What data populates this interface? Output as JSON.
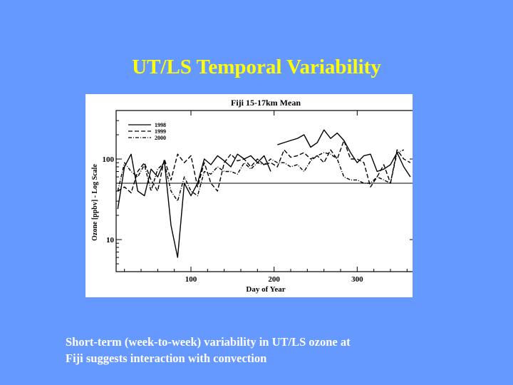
{
  "slide": {
    "title": "UT/LS Temporal Variability",
    "caption_lines": [
      "Short-term (week-to-week) variability in UT/LS ozone at",
      "Fiji suggests interaction with convection"
    ],
    "background_color": "#6699FF",
    "title_color": "#FFFF00",
    "caption_color": "#FFFFFF"
  },
  "chart_data": {
    "type": "line",
    "title": "Fiji 15-17km Mean",
    "xlabel": "Day of Year",
    "ylabel": "Ozone [ppbv] - Log Scale",
    "xlim": [
      10,
      370
    ],
    "ylim": [
      4,
      400
    ],
    "yscale": "log",
    "xticks": [
      100,
      200,
      300
    ],
    "yticks": [
      10,
      100
    ],
    "reference_line_y": 50,
    "grid": false,
    "legend_position": "top-left",
    "series": [
      {
        "name": "1998",
        "line_style": "solid",
        "segments": [
          [
            [
              12,
              24
            ],
            [
              20,
              80
            ],
            [
              28,
              115
            ],
            [
              36,
              40
            ],
            [
              44,
              35
            ],
            [
              52,
              75
            ],
            [
              60,
              60
            ],
            [
              68,
              95
            ],
            [
              76,
              15
            ],
            [
              84,
              6
            ],
            [
              92,
              50
            ],
            [
              100,
              35
            ],
            [
              108,
              50
            ],
            [
              116,
              100
            ],
            [
              124,
              85
            ],
            [
              132,
              110
            ],
            [
              140,
              95
            ],
            [
              148,
              80
            ],
            [
              156,
              115
            ],
            [
              164,
              100
            ],
            [
              172,
              110
            ],
            [
              180,
              90
            ],
            [
              188,
              110
            ],
            [
              196,
              70
            ]
          ],
          [
            [
              204,
              150
            ],
            [
              212,
              160
            ],
            [
              220,
              170
            ],
            [
              228,
              180
            ],
            [
              236,
              200
            ],
            [
              244,
              140
            ],
            [
              252,
              160
            ],
            [
              260,
              230
            ],
            [
              268,
              180
            ],
            [
              276,
              210
            ],
            [
              284,
              170
            ],
            [
              292,
              120
            ],
            [
              300,
              90
            ],
            [
              308,
              110
            ],
            [
              316,
              115
            ],
            [
              324,
              70
            ],
            [
              332,
              75
            ],
            [
              340,
              85
            ],
            [
              348,
              120
            ],
            [
              356,
              80
            ],
            [
              364,
              60
            ]
          ]
        ]
      },
      {
        "name": "1999",
        "line_style": "dashed",
        "segments": [
          [
            [
              12,
              40
            ],
            [
              20,
              45
            ],
            [
              28,
              38
            ],
            [
              36,
              70
            ],
            [
              44,
              90
            ],
            [
              52,
              55
            ],
            [
              60,
              40
            ],
            [
              68,
              100
            ],
            [
              76,
              55
            ],
            [
              84,
              115
            ],
            [
              92,
              90
            ],
            [
              100,
              110
            ],
            [
              108,
              45
            ],
            [
              116,
              90
            ],
            [
              124,
              50
            ],
            [
              132,
              40
            ],
            [
              140,
              90
            ],
            [
              148,
              115
            ],
            [
              156,
              95
            ],
            [
              164,
              100
            ],
            [
              172,
              80
            ],
            [
              180,
              100
            ],
            [
              188,
              85
            ],
            [
              196,
              90
            ],
            [
              204,
              80
            ],
            [
              212,
              130
            ],
            [
              220,
              105
            ],
            [
              228,
              110
            ],
            [
              236,
              120
            ],
            [
              244,
              100
            ],
            [
              252,
              110
            ],
            [
              260,
              90
            ],
            [
              268,
              130
            ],
            [
              276,
              100
            ],
            [
              284,
              170
            ],
            [
              292,
              100
            ],
            [
              300,
              100
            ],
            [
              308,
              90
            ],
            [
              316,
              45
            ],
            [
              324,
              60
            ],
            [
              332,
              85
            ],
            [
              340,
              50
            ],
            [
              348,
              130
            ],
            [
              356,
              100
            ],
            [
              364,
              90
            ]
          ]
        ]
      },
      {
        "name": "2000",
        "line_style": "dash-dot",
        "segments": [
          [
            [
              12,
              40
            ],
            [
              20,
              90
            ],
            [
              28,
              70
            ],
            [
              36,
              60
            ],
            [
              44,
              85
            ],
            [
              52,
              40
            ],
            [
              60,
              75
            ],
            [
              68,
              90
            ],
            [
              76,
              40
            ],
            [
              84,
              30
            ],
            [
              92,
              60
            ],
            [
              100,
              40
            ],
            [
              108,
              35
            ],
            [
              116,
              70
            ],
            [
              124,
              65
            ],
            [
              132,
              80
            ],
            [
              140,
              70
            ],
            [
              148,
              70
            ],
            [
              156,
              65
            ],
            [
              164,
              90
            ],
            [
              172,
              75
            ],
            [
              180,
              90
            ],
            [
              188,
              85
            ],
            [
              196,
              100
            ],
            [
              204,
              90
            ],
            [
              212,
              90
            ],
            [
              220,
              80
            ],
            [
              228,
              85
            ],
            [
              236,
              70
            ],
            [
              244,
              95
            ],
            [
              252,
              110
            ],
            [
              260,
              120
            ],
            [
              268,
              115
            ],
            [
              276,
              100
            ],
            [
              284,
              60
            ],
            [
              292,
              55
            ],
            [
              300,
              55
            ],
            [
              308,
              50
            ],
            [
              316,
              50
            ],
            [
              324,
              60
            ],
            [
              332,
              55
            ],
            [
              340,
              50
            ],
            [
              348,
              120
            ],
            [
              356,
              130
            ]
          ]
        ]
      }
    ]
  }
}
